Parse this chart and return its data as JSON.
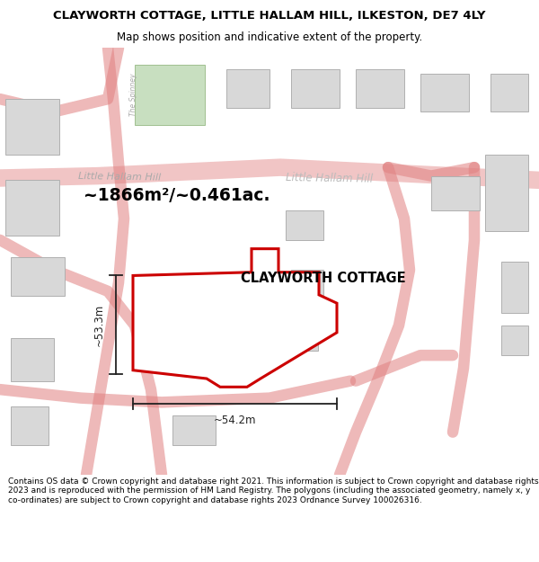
{
  "title": "CLAYWORTH COTTAGE, LITTLE HALLAM HILL, ILKESTON, DE7 4LY",
  "subtitle": "Map shows position and indicative extent of the property.",
  "footer": "Contains OS data © Crown copyright and database right 2021. This information is subject to Crown copyright and database rights 2023 and is reproduced with the permission of HM Land Registry. The polygons (including the associated geometry, namely x, y co-ordinates) are subject to Crown copyright and database rights 2023 Ordnance Survey 100026316.",
  "property_label": "CLAYWORTH COTTAGE",
  "area_label": "~1866m²/~0.461ac.",
  "width_label": "~54.2m",
  "height_label": "~53.3m",
  "road_label_left": "Little Hallam Hill",
  "road_label_right": "Little Hallam Hill",
  "spinney_label": "The Spinney",
  "map_bg": "#ffffff",
  "road_fill": "#f5e8e8",
  "road_line": "#e08080",
  "building_fill": "#d8d8d8",
  "building_edge": "#b0b0b0",
  "green_fill": "#c8dfc0",
  "green_edge": "#a0c090",
  "property_fill": "#ffffff",
  "property_edge": "#cc0000",
  "dim_color": "#222222",
  "road_label_color": "#aaaaaa",
  "spinney_label_color": "#aaaaaa",
  "area_label_color": "#000000",
  "prop_label_color": "#000000",
  "title_fontsize": 9.5,
  "subtitle_fontsize": 8.5,
  "footer_fontsize": 6.5
}
